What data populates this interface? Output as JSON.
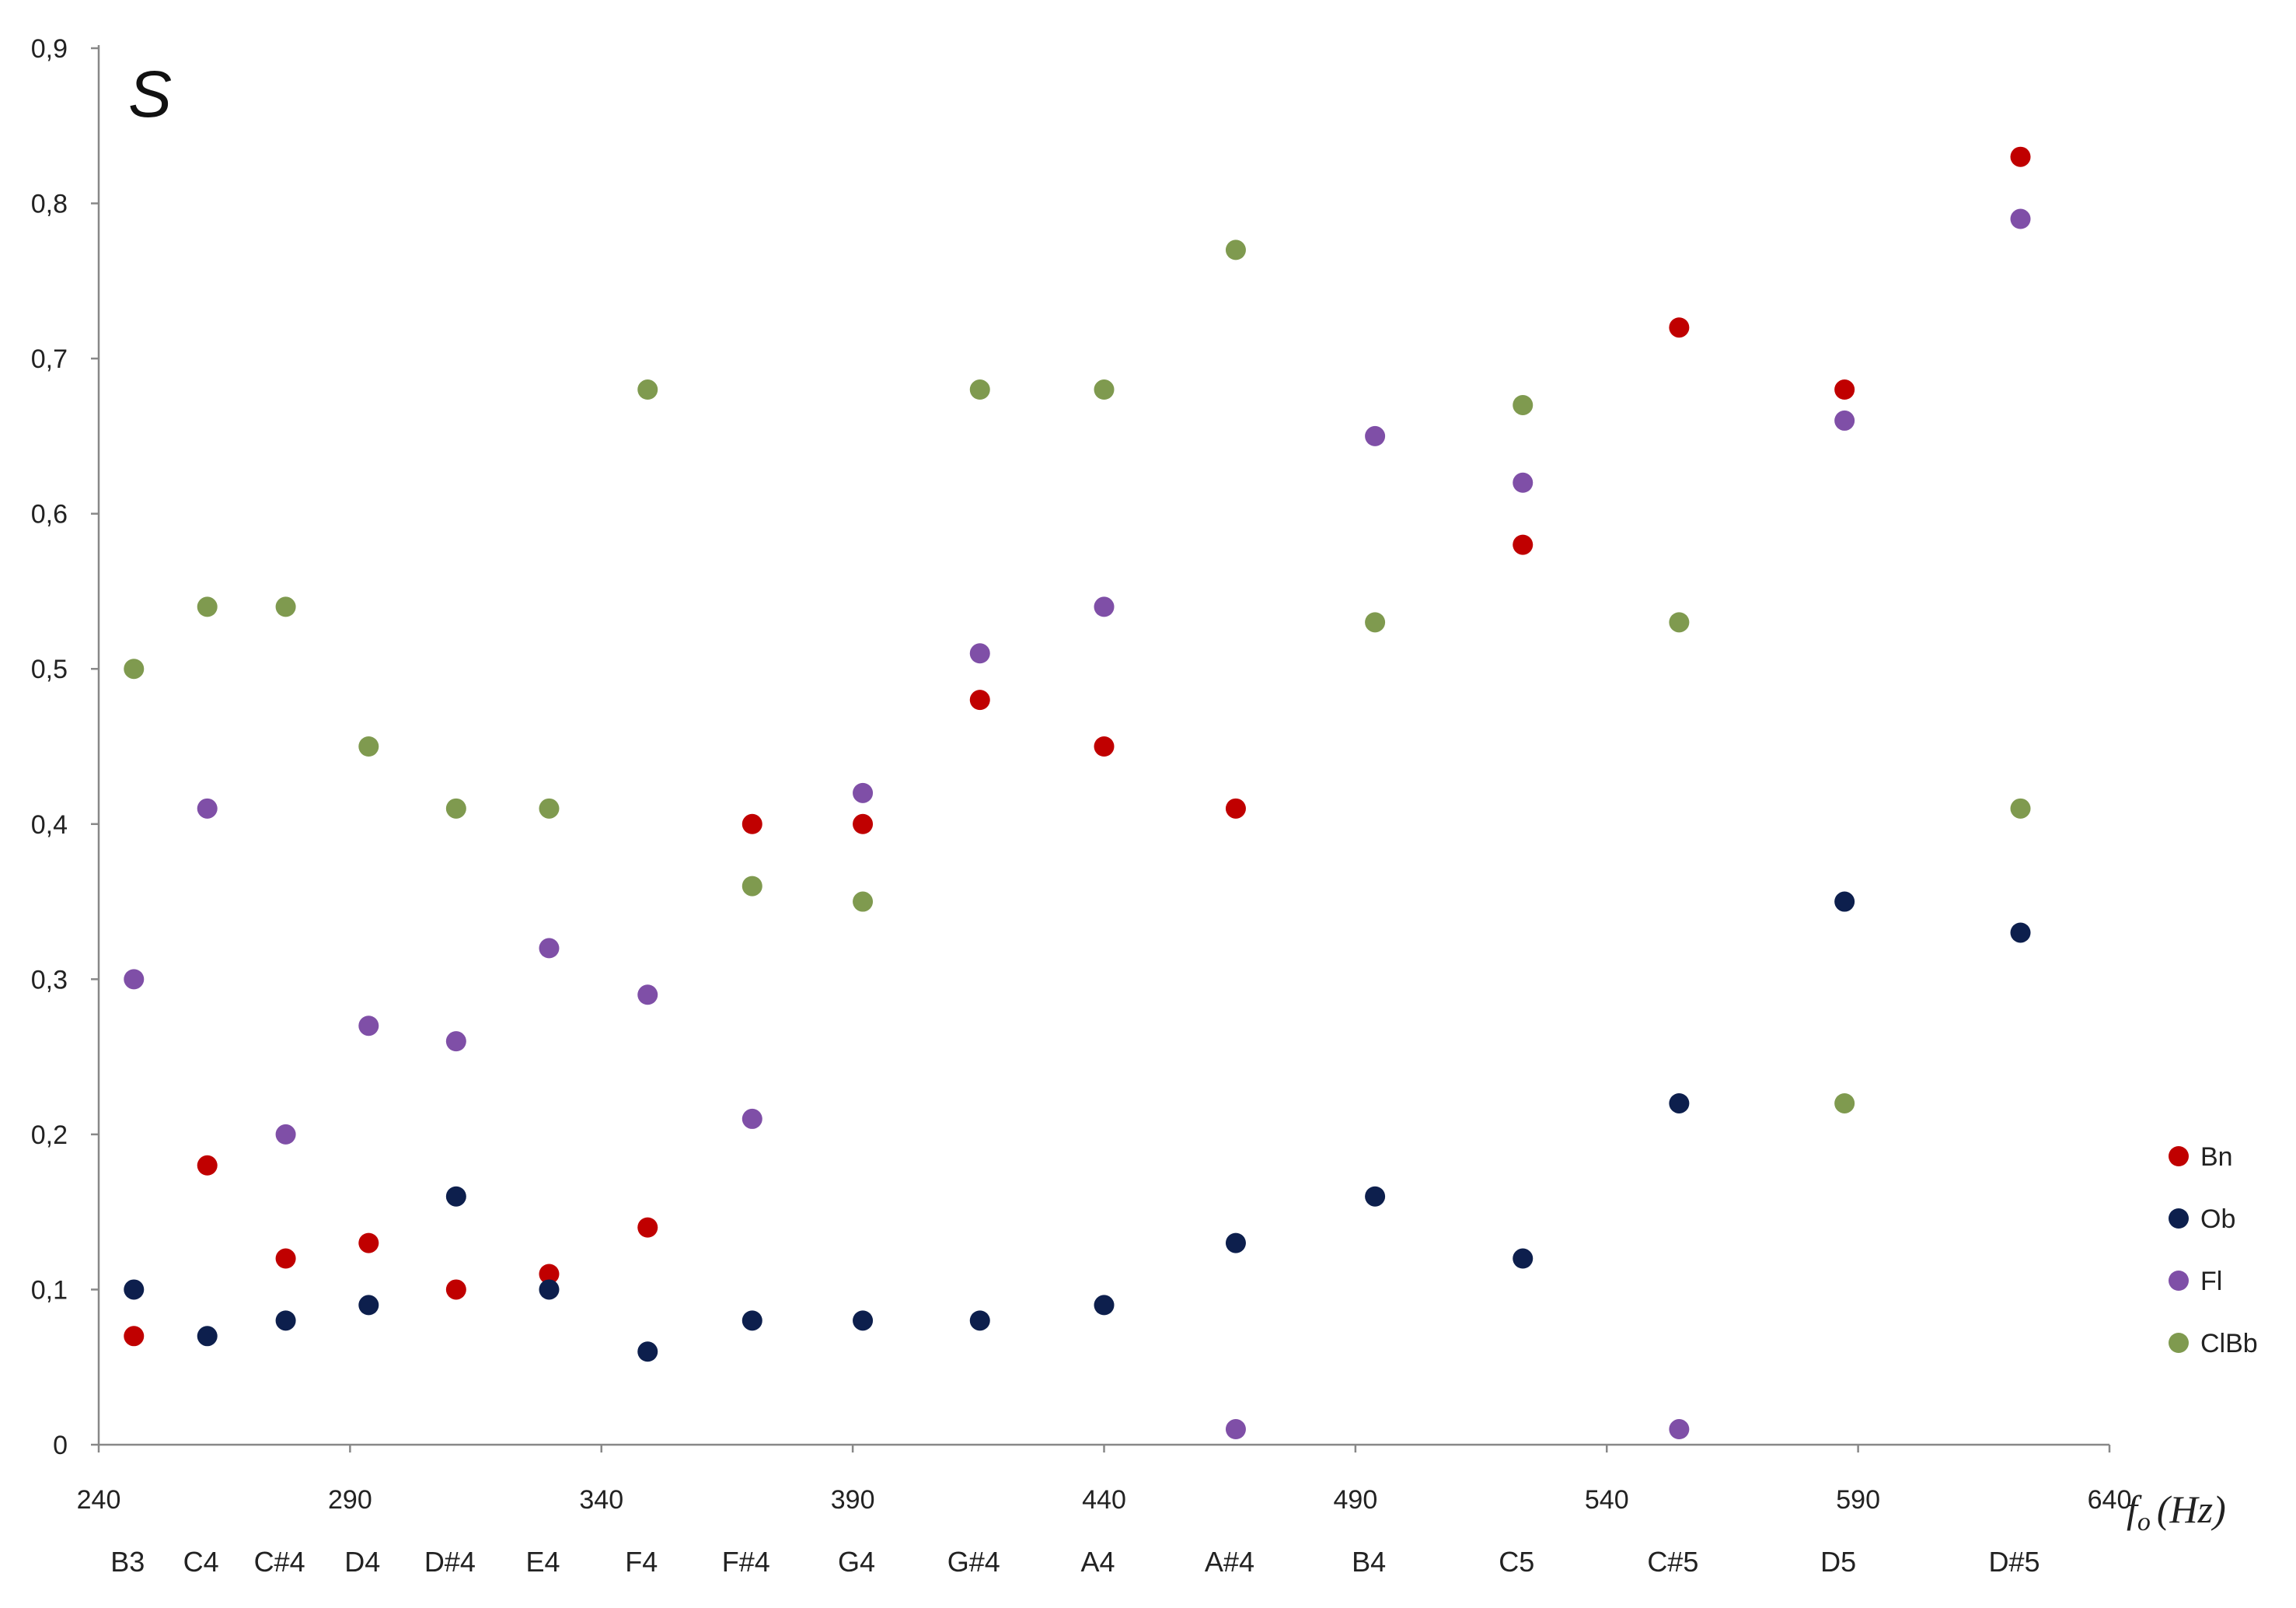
{
  "chart_data": {
    "type": "scatter",
    "title": "S",
    "xlabel": "f",
    "xlabel_subscript": "o",
    "xlabel_unit": "(Hz)",
    "ylabel": "",
    "xlim": [
      240,
      640
    ],
    "ylim": [
      0,
      0.9
    ],
    "grid": false,
    "legend_position": "right",
    "x_ticks": [
      240,
      290,
      340,
      390,
      440,
      490,
      540,
      590,
      640
    ],
    "y_ticks": [
      0,
      0.1,
      0.2,
      0.3,
      0.4,
      0.5,
      0.6,
      0.7,
      0.8,
      0.9
    ],
    "y_tick_labels": [
      "0",
      "0,1",
      "0,2",
      "0,3",
      "0,4",
      "0,5",
      "0,6",
      "0,7",
      "0,8",
      "0,9"
    ],
    "notes": [
      {
        "label": "B3",
        "x": 247
      },
      {
        "label": "C4",
        "x": 261.6
      },
      {
        "label": "C#4",
        "x": 277.2
      },
      {
        "label": "D4",
        "x": 293.7
      },
      {
        "label": "D#4",
        "x": 311.1
      },
      {
        "label": "E4",
        "x": 329.6
      },
      {
        "label": "F4",
        "x": 349.2
      },
      {
        "label": "F#4",
        "x": 370
      },
      {
        "label": "G4",
        "x": 392
      },
      {
        "label": "G#4",
        "x": 415.3
      },
      {
        "label": "A4",
        "x": 440
      },
      {
        "label": "A#4",
        "x": 466.2
      },
      {
        "label": "B4",
        "x": 493.9
      },
      {
        "label": "C5",
        "x": 523.3
      },
      {
        "label": "C#5",
        "x": 554.4
      },
      {
        "label": "D5",
        "x": 587.3
      },
      {
        "label": "D#5",
        "x": 622.3
      }
    ],
    "series": [
      {
        "name": "Bn",
        "color": "#c00000",
        "points": [
          [
            247,
            0.07
          ],
          [
            261.6,
            0.18
          ],
          [
            277.2,
            0.12
          ],
          [
            293.7,
            0.13
          ],
          [
            311.1,
            0.1
          ],
          [
            329.6,
            0.11
          ],
          [
            349.2,
            0.14
          ],
          [
            370,
            0.4
          ],
          [
            392,
            0.4
          ],
          [
            415.3,
            0.48
          ],
          [
            440,
            0.45
          ],
          [
            466.2,
            0.41
          ],
          [
            523.3,
            0.58
          ],
          [
            554.4,
            0.72
          ],
          [
            587.3,
            0.68
          ],
          [
            622.3,
            0.83
          ]
        ]
      },
      {
        "name": "Ob",
        "color": "#0d1f4d",
        "points": [
          [
            247,
            0.1
          ],
          [
            261.6,
            0.07
          ],
          [
            277.2,
            0.08
          ],
          [
            293.7,
            0.09
          ],
          [
            311.1,
            0.16
          ],
          [
            329.6,
            0.1
          ],
          [
            349.2,
            0.06
          ],
          [
            370,
            0.08
          ],
          [
            392,
            0.08
          ],
          [
            415.3,
            0.08
          ],
          [
            440,
            0.09
          ],
          [
            466.2,
            0.13
          ],
          [
            493.9,
            0.16
          ],
          [
            523.3,
            0.12
          ],
          [
            554.4,
            0.22
          ],
          [
            587.3,
            0.35
          ],
          [
            622.3,
            0.33
          ]
        ]
      },
      {
        "name": "Fl",
        "color": "#7f4fa7",
        "points": [
          [
            247,
            0.3
          ],
          [
            261.6,
            0.41
          ],
          [
            277.2,
            0.2
          ],
          [
            293.7,
            0.27
          ],
          [
            311.1,
            0.26
          ],
          [
            329.6,
            0.32
          ],
          [
            349.2,
            0.29
          ],
          [
            370,
            0.21
          ],
          [
            392,
            0.42
          ],
          [
            415.3,
            0.51
          ],
          [
            440,
            0.54
          ],
          [
            466.2,
            0.01
          ],
          [
            493.9,
            0.65
          ],
          [
            523.3,
            0.62
          ],
          [
            554.4,
            0.01
          ],
          [
            587.3,
            0.66
          ],
          [
            622.3,
            0.79
          ]
        ]
      },
      {
        "name": "ClBb",
        "color": "#7f9a4f",
        "points": [
          [
            247,
            0.5
          ],
          [
            261.6,
            0.54
          ],
          [
            277.2,
            0.54
          ],
          [
            293.7,
            0.45
          ],
          [
            311.1,
            0.41
          ],
          [
            329.6,
            0.41
          ],
          [
            349.2,
            0.68
          ],
          [
            370,
            0.36
          ],
          [
            392,
            0.35
          ],
          [
            415.3,
            0.68
          ],
          [
            440,
            0.68
          ],
          [
            466.2,
            0.77
          ],
          [
            493.9,
            0.53
          ],
          [
            523.3,
            0.67
          ],
          [
            554.4,
            0.53
          ],
          [
            587.3,
            0.22
          ],
          [
            622.3,
            0.41
          ]
        ]
      }
    ]
  }
}
